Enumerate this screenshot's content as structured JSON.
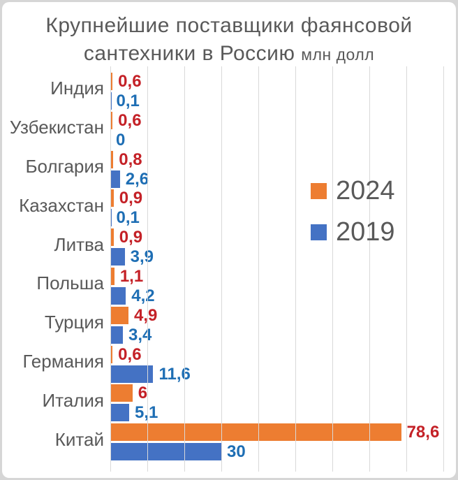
{
  "title": {
    "line1": "Крупнейшие поставщики фаянсовой",
    "line2": "сантехники в Россию",
    "unit": "млн долл"
  },
  "legend": [
    {
      "label": "2024",
      "color": "#ED7D31"
    },
    {
      "label": "2019",
      "color": "#4472C4"
    }
  ],
  "colors": {
    "bar_2024": "#ED7D31",
    "bar_2019": "#4472C4",
    "label_2024": "#C42127",
    "label_2019": "#1E6EB4",
    "text_gray": "#595959",
    "gridline": "#D9D9D9",
    "frame": "#D6D6D6",
    "card": "#FFFFFF"
  },
  "chart_data": {
    "type": "bar",
    "orientation": "horizontal",
    "title": "Крупнейшие поставщики фаянсовой сантехники в Россию млн долл",
    "xlabel": "",
    "ylabel": "",
    "xlim": [
      0,
      90
    ],
    "gridline_interval": 10,
    "grid": true,
    "legend_position": "right-middle",
    "categories": [
      "Индия",
      "Узбекистан",
      "Болгария",
      "Казахстан",
      "Литва",
      "Польша",
      "Турция",
      "Германия",
      "Италия",
      "Китай"
    ],
    "series": [
      {
        "name": "2024",
        "color": "#ED7D31",
        "label_color": "#C42127",
        "values": [
          0.6,
          0.6,
          0.8,
          0.9,
          0.9,
          1.1,
          4.9,
          0.6,
          6,
          78.6
        ],
        "labels": [
          "0,6",
          "0,6",
          "0,8",
          "0,9",
          "0,9",
          "1,1",
          "4,9",
          "0,6",
          "6",
          "78,6"
        ]
      },
      {
        "name": "2019",
        "color": "#4472C4",
        "label_color": "#1E6EB4",
        "values": [
          0.1,
          0,
          2.6,
          0.1,
          3.9,
          4.2,
          3.4,
          11.6,
          5.1,
          30
        ],
        "labels": [
          "0,1",
          "0",
          "2,6",
          "0,1",
          "3,9",
          "4,2",
          "3,4",
          "11,6",
          "5,1",
          "30"
        ]
      }
    ]
  }
}
